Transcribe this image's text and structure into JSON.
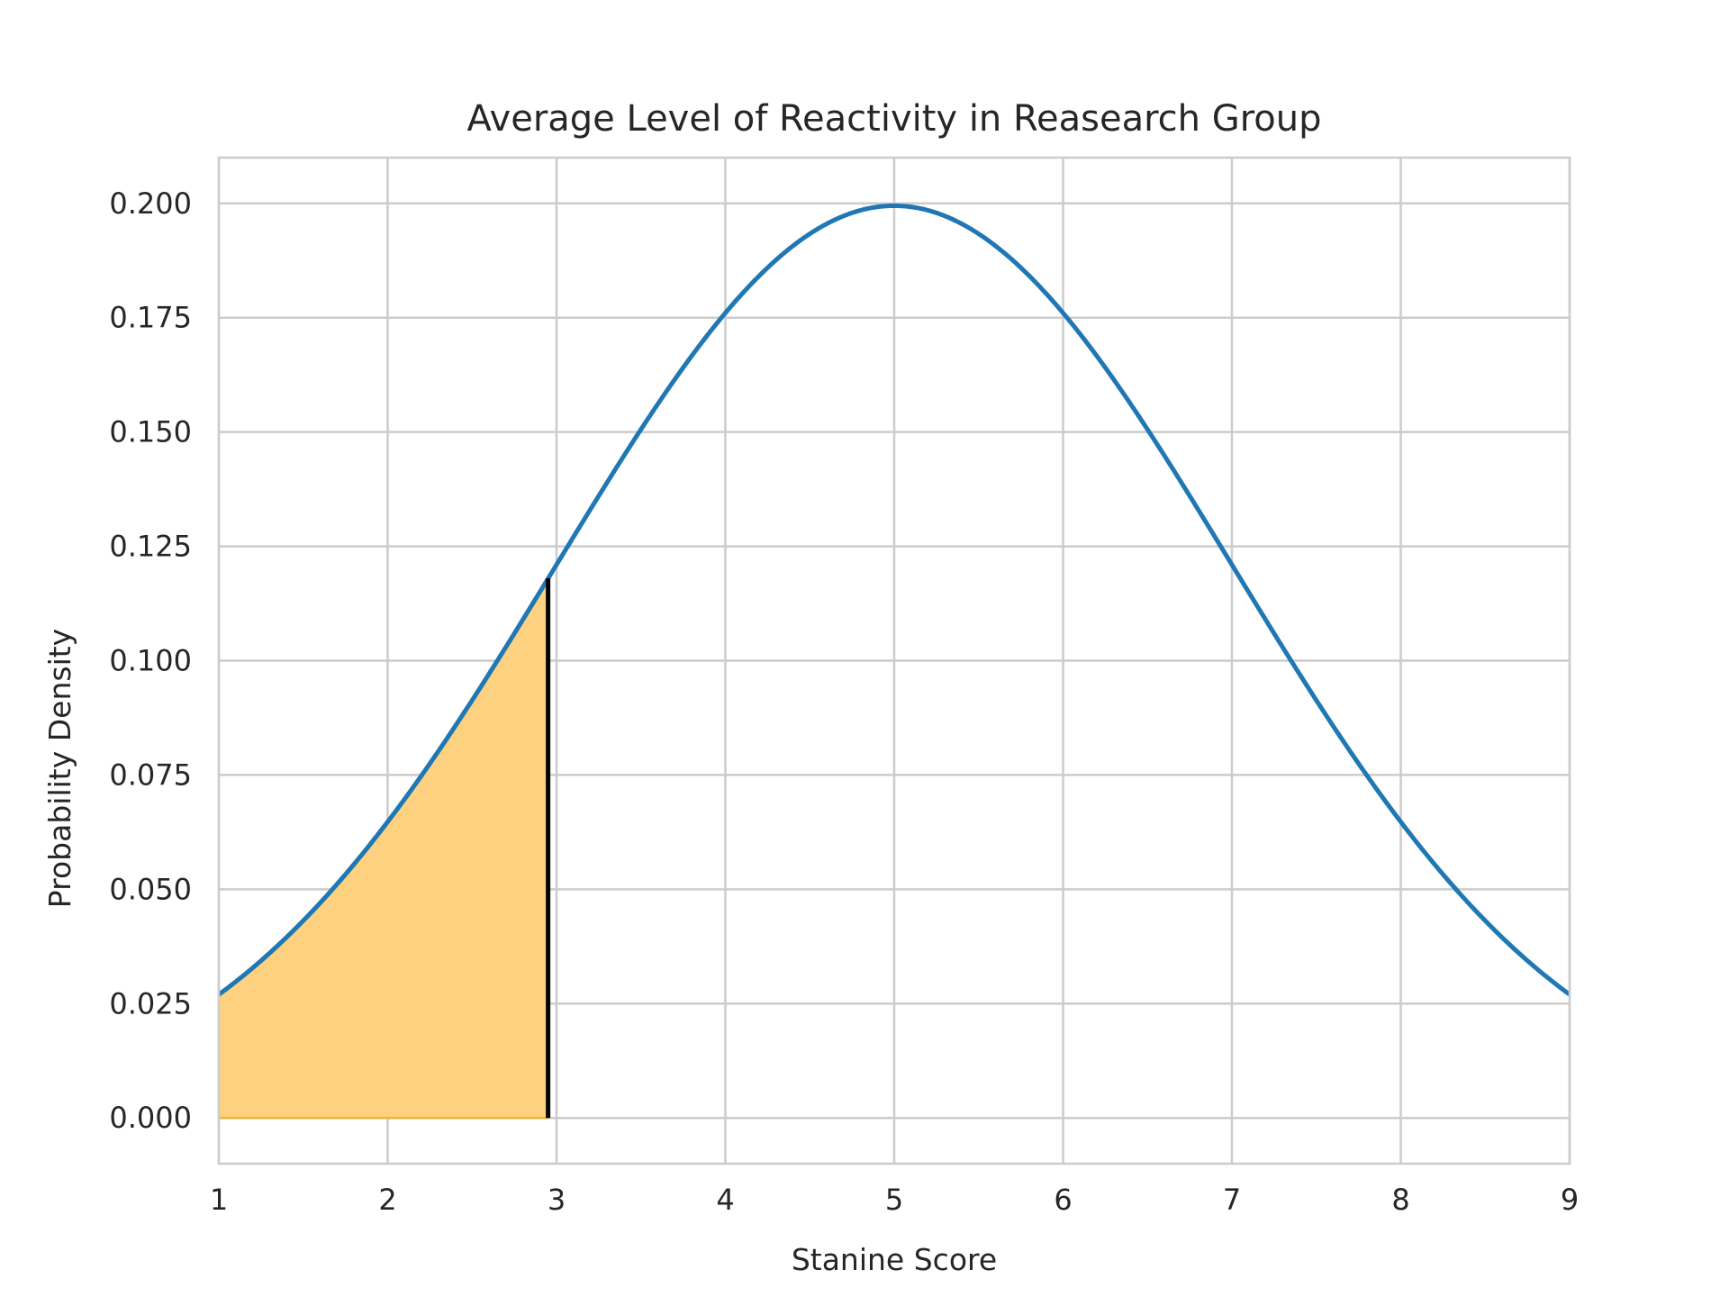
{
  "chart_data": {
    "type": "area",
    "title": "Average Level of Reactivity in Reasearch Group",
    "xlabel": "Stanine Score",
    "ylabel": "Probability Density",
    "xlim": [
      1,
      9
    ],
    "ylim": [
      -0.01,
      0.21
    ],
    "x_ticks": [
      "1",
      "2",
      "3",
      "4",
      "5",
      "6",
      "7",
      "8",
      "9"
    ],
    "y_ticks": [
      "0.000",
      "0.025",
      "0.050",
      "0.075",
      "0.100",
      "0.125",
      "0.150",
      "0.175",
      "0.200"
    ],
    "grid": true,
    "series": [
      {
        "kind": "normal-pdf-curve",
        "mean": 5,
        "std": 2,
        "x_range": [
          1,
          9
        ],
        "color": "#1f77b4"
      },
      {
        "kind": "shaded-area",
        "x_range": [
          1,
          2.95
        ],
        "color": "#fdd17f",
        "edge_color": "#f2b531"
      },
      {
        "kind": "vertical-line",
        "x": 2.95,
        "y_range": [
          0,
          0.118
        ],
        "color": "#000000"
      }
    ]
  }
}
